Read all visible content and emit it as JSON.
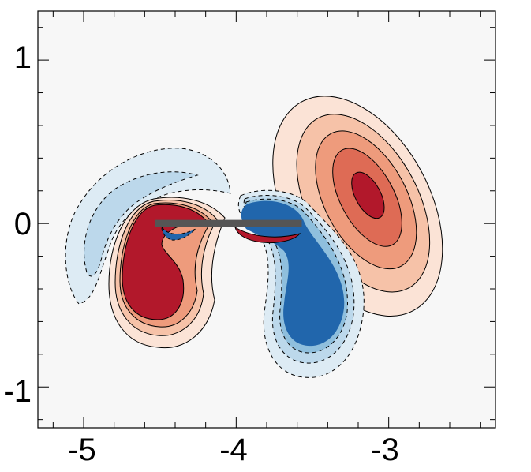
{
  "chart_data": {
    "type": "contour",
    "x_ticks": [
      "-5",
      "-4",
      "-3"
    ],
    "x_tick_values": [
      -5,
      -4,
      -3
    ],
    "y_ticks": [
      "1",
      "0",
      "-1"
    ],
    "y_tick_values": [
      1,
      0,
      -1
    ],
    "xlim": [
      -5.3,
      -2.3
    ],
    "ylim": [
      -1.25,
      1.3
    ],
    "title": "",
    "xlabel": "",
    "ylabel": "",
    "background": "#f7f7f7",
    "plate": {
      "x0": -4.53,
      "x1": -3.57,
      "y": 0.0,
      "color": "#555555"
    },
    "contour_levels": [
      {
        "color": "#fbe3d6",
        "sign": "positive",
        "line": "solid"
      },
      {
        "color": "#f6c2a8",
        "sign": "positive",
        "line": "solid"
      },
      {
        "color": "#ee9b7c",
        "sign": "positive",
        "line": "solid"
      },
      {
        "color": "#de6b55",
        "sign": "positive",
        "line": "solid"
      },
      {
        "color": "#b2182b",
        "sign": "positive",
        "line": "solid"
      },
      {
        "color": "#ddebf4",
        "sign": "negative",
        "line": "dashed"
      },
      {
        "color": "#bcd8eb",
        "sign": "negative",
        "line": "dashed"
      },
      {
        "color": "#8fbfdd",
        "sign": "negative",
        "line": "dashed"
      },
      {
        "color": "#2166ac",
        "sign": "negative",
        "line": "dashed"
      }
    ]
  }
}
